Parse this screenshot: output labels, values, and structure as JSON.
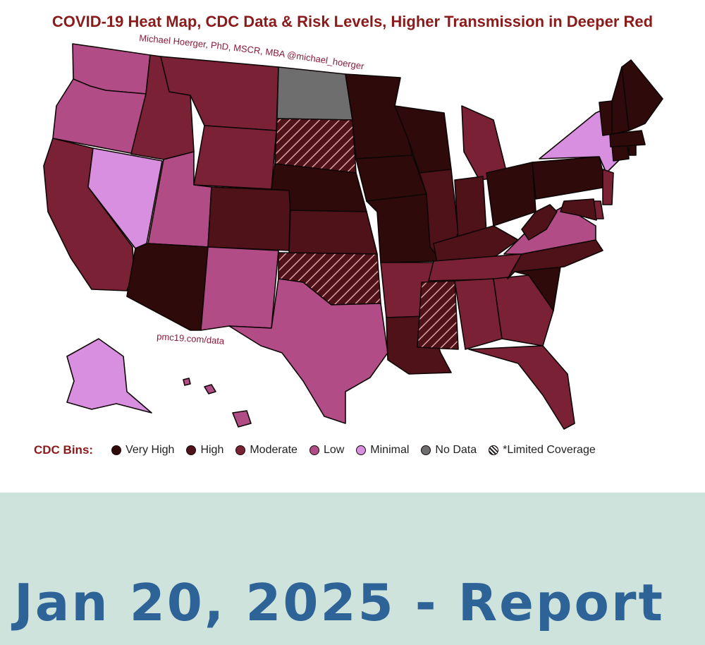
{
  "title": "COVID-19 Heat Map, CDC Data & Risk Levels, Higher Transmission in Deeper Red",
  "author_credit": "Michael Hoerger, PhD, MSCR, MBA @michael_hoerger",
  "source_url": "pmc19.com/data",
  "legend": {
    "label": "CDC Bins:",
    "items": [
      {
        "key": "very_high",
        "label": "Very High",
        "color": "#2e0a0a"
      },
      {
        "key": "high",
        "label": "High",
        "color": "#4f1219"
      },
      {
        "key": "moderate",
        "label": "Moderate",
        "color": "#7a2136"
      },
      {
        "key": "low",
        "label": "Low",
        "color": "#b24c87"
      },
      {
        "key": "minimal",
        "label": "Minimal",
        "color": "#d98fe0"
      },
      {
        "key": "no_data",
        "label": "No Data",
        "color": "#6e6e6e"
      },
      {
        "key": "limited",
        "label": "*Limited Coverage",
        "color": "hatch"
      }
    ]
  },
  "states": {
    "WA": "low",
    "OR": "low",
    "CA": "moderate",
    "NV": "minimal",
    "ID": "moderate",
    "MT": "moderate",
    "WY": "moderate",
    "UT": "low",
    "AZ": "very_high",
    "CO": "high",
    "NM": "low",
    "ND": "no_data",
    "SD": "limited",
    "NE": "very_high",
    "KS": "high",
    "OK": "limited",
    "TX": "low",
    "MN": "very_high",
    "IA": "very_high",
    "MO": "very_high",
    "AR": "moderate",
    "LA": "high",
    "WI": "very_high",
    "IL": "high",
    "MI": "moderate",
    "IN": "high",
    "OH": "very_high",
    "KY": "high",
    "TN": "moderate",
    "MS": "limited",
    "AL": "moderate",
    "GA": "moderate",
    "FL": "moderate",
    "SC": "very_high",
    "NC": "high",
    "VA": "low",
    "WV": "high",
    "PA": "very_high",
    "NY": "minimal",
    "NJ": "moderate",
    "DE": "moderate",
    "MD": "high",
    "CT": "very_high",
    "RI": "very_high",
    "MA": "very_high",
    "VT": "very_high",
    "NH": "very_high",
    "ME": "very_high",
    "AK": "minimal",
    "HI": "low"
  },
  "report": {
    "date_label": "Jan 20, 2025 - Report"
  }
}
